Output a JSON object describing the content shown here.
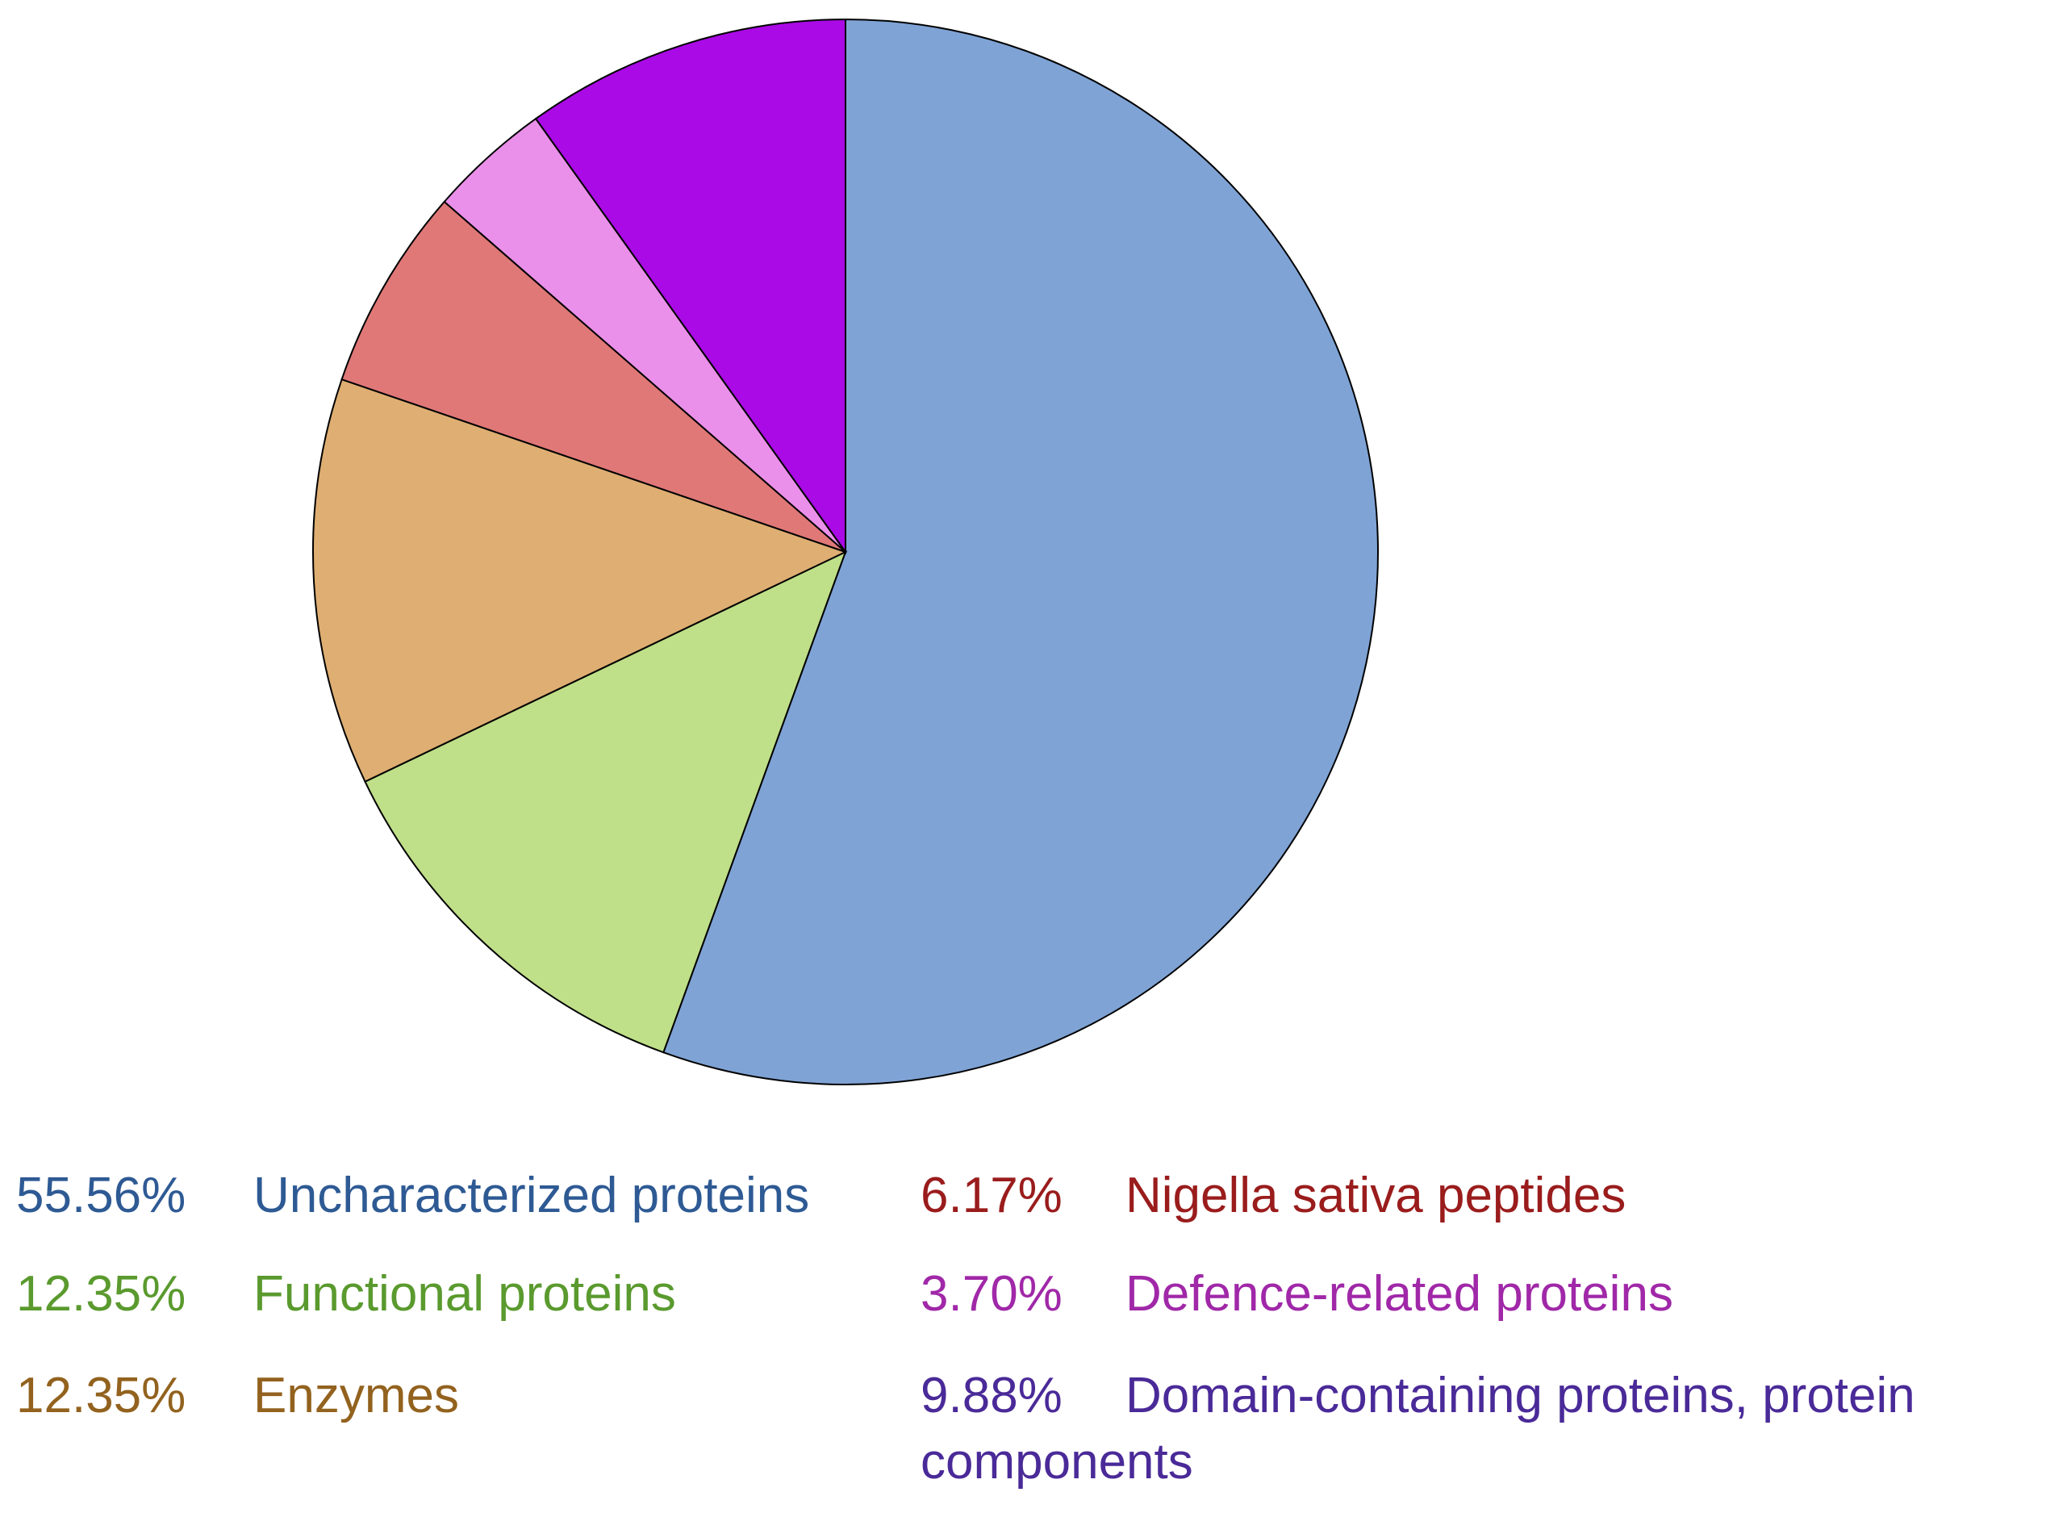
{
  "chart_data": {
    "type": "pie",
    "categories": [
      "Uncharacterized proteins",
      "Functional proteins",
      "Enzymes",
      "Nigella sativa peptides",
      "Defence-related proteins",
      "Domain-containing proteins, protein components"
    ],
    "values": [
      55.56,
      12.35,
      12.35,
      6.17,
      3.7,
      9.88
    ],
    "value_labels": [
      "55.56%",
      "12.35%",
      "12.35%",
      "6.17%",
      "3.70%",
      "9.88%"
    ],
    "colors": [
      "#7fa3d5",
      "#bfdf88",
      "#deae72",
      "#e07878",
      "#ea90ea",
      "#aa0ae6"
    ],
    "label_colors": [
      "#2e5a94",
      "#5a9a2e",
      "#92621e",
      "#9a1c1c",
      "#a028a8",
      "#4a2a98"
    ]
  }
}
